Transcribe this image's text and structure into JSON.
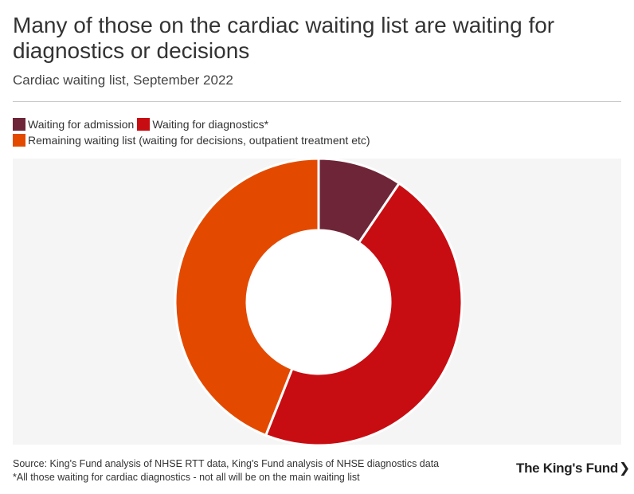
{
  "header": {
    "title": "Many of those on the cardiac waiting list are waiting for diagnostics or decisions",
    "subtitle": "Cardiac waiting list, September 2022"
  },
  "legend": {
    "items": [
      {
        "label": "Waiting for admission",
        "color": "#6e2538"
      },
      {
        "label": "Waiting for diagnostics*",
        "color": "#c80d12"
      },
      {
        "label": "Remaining waiting list (waiting for decisions, outpatient treatment etc)",
        "color": "#e34a00"
      }
    ]
  },
  "chart_data": {
    "type": "pie",
    "variant": "donut",
    "title": "Many of those on the cardiac waiting list are waiting for diagnostics or decisions",
    "subtitle": "Cardiac waiting list, September 2022",
    "unit": "share of cardiac waiting list (%)",
    "slices": [
      {
        "label": "Waiting for admission",
        "value": 9.5,
        "color": "#6e2538"
      },
      {
        "label": "Waiting for diagnostics*",
        "value": 46.5,
        "color": "#c80d12"
      },
      {
        "label": "Remaining waiting list (waiting for decisions, outpatient treatment etc)",
        "value": 44.0,
        "color": "#e34a00"
      }
    ],
    "start_angle": "top (12 o'clock), clockwise",
    "legend_position": "top-left",
    "grid": false
  },
  "footer": {
    "source": "Source: King's Fund analysis of NHSE RTT data, King's Fund analysis of NHSE diagnostics data",
    "note": "*All those waiting for cardiac diagnostics - not all will be on the main waiting list",
    "logo": "The King's Fund",
    "logo_chevron": "❯"
  }
}
